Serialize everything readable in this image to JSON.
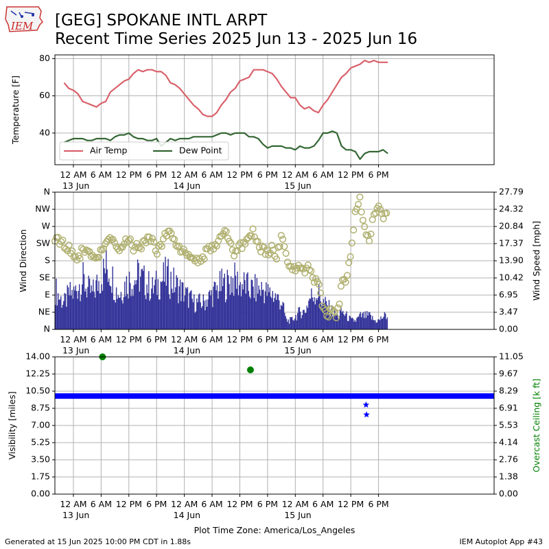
{
  "header": {
    "title_line1": "[GEG] SPOKANE INTL ARPT",
    "title_line2": "Recent Time Series 2025 Jun 13 - 2025 Jun 16",
    "logo_text": "IEM"
  },
  "footer": {
    "generated": "Generated at 15 Jun 2025 10:00 PM CDT in 1.88s",
    "app": "IEM Autoplot App #43"
  },
  "colors": {
    "air_temp": "#d9606a",
    "dew_point": "#336633",
    "wind_speed": "#333399",
    "wind_dir": "#b0b070",
    "visibility": "#0000ff",
    "ceiling": "#008000",
    "grid": "#b0b0b0"
  },
  "chart_data": [
    {
      "type": "line",
      "x_unit": "hours since 2025-06-13 00:00 (America/Los_Angeles)",
      "xlim": [
        -4,
        91
      ],
      "ylim": [
        23,
        82
      ],
      "ylabel": "Temperature [F]",
      "y_ticks": [
        40,
        60,
        80
      ],
      "x_tick_labels": [
        {
          "x": 0,
          "label": "12 AM",
          "date": "13 Jun"
        },
        {
          "x": 6,
          "label": "6 AM"
        },
        {
          "x": 12,
          "label": "12 PM"
        },
        {
          "x": 18,
          "label": "6 PM"
        },
        {
          "x": 24,
          "label": "12 AM",
          "date": "14 Jun"
        },
        {
          "x": 30,
          "label": "6 AM"
        },
        {
          "x": 36,
          "label": "12 PM"
        },
        {
          "x": 42,
          "label": "6 PM"
        },
        {
          "x": 48,
          "label": "12 AM",
          "date": "15 Jun"
        },
        {
          "x": 54,
          "label": "6 AM"
        },
        {
          "x": 60,
          "label": "12 PM"
        },
        {
          "x": 66,
          "label": "6 PM"
        }
      ],
      "grid": true,
      "legend": "lower-left",
      "series": [
        {
          "name": "Air Temp",
          "x": [
            -2,
            -1,
            0,
            1,
            2,
            3,
            4,
            5,
            6,
            7,
            8,
            9,
            10,
            11,
            12,
            13,
            14,
            15,
            16,
            17,
            18,
            19,
            20,
            21,
            22,
            23,
            24,
            25,
            26,
            27,
            28,
            29,
            30,
            31,
            32,
            33,
            34,
            35,
            36,
            37,
            38,
            39,
            40,
            41,
            42,
            43,
            44,
            45,
            46,
            47,
            48,
            49,
            50,
            51,
            52,
            53,
            54,
            55,
            56,
            57,
            58,
            59,
            60,
            61,
            62,
            63,
            64,
            65,
            66,
            67,
            68
          ],
          "values": [
            67,
            64,
            63,
            61,
            57,
            56,
            55,
            54,
            56,
            57,
            62,
            64,
            66,
            68,
            69,
            72,
            74,
            73,
            74,
            74,
            73,
            73,
            71,
            67,
            66,
            64,
            61,
            58,
            55,
            53,
            50,
            49,
            49,
            51,
            55,
            58,
            62,
            64,
            68,
            69,
            70,
            74,
            74,
            74,
            73,
            72,
            69,
            65,
            62,
            59,
            59,
            55,
            53,
            54,
            52,
            51,
            55,
            58,
            62,
            66,
            70,
            72,
            75,
            76,
            77,
            79,
            78,
            79,
            78,
            78,
            78
          ]
        },
        {
          "name": "Dew Point",
          "x": [
            -2,
            -1,
            0,
            1,
            2,
            3,
            4,
            5,
            6,
            7,
            8,
            9,
            10,
            11,
            12,
            13,
            14,
            15,
            16,
            17,
            18,
            19,
            20,
            21,
            22,
            23,
            24,
            25,
            26,
            27,
            28,
            29,
            30,
            31,
            32,
            33,
            34,
            35,
            36,
            37,
            38,
            39,
            40,
            41,
            42,
            43,
            44,
            45,
            46,
            47,
            48,
            49,
            50,
            51,
            52,
            53,
            54,
            55,
            56,
            57,
            58,
            59,
            60,
            61,
            62,
            63,
            64,
            65,
            66,
            67,
            68
          ],
          "values": [
            35,
            36,
            37,
            37,
            37,
            36,
            36,
            37,
            37,
            37,
            36,
            38,
            39,
            39,
            40,
            38,
            37,
            37,
            36,
            36,
            37,
            33,
            35,
            37,
            36,
            37,
            37,
            37,
            38,
            38,
            38,
            38,
            38,
            39,
            40,
            40,
            39,
            40,
            40,
            40,
            38,
            38,
            37,
            34,
            32,
            33,
            33,
            33,
            32,
            32,
            31,
            33,
            32,
            32,
            33,
            36,
            40,
            40,
            41,
            40,
            33,
            31,
            31,
            30,
            26,
            29,
            30,
            30,
            30,
            31,
            29
          ]
        }
      ]
    },
    {
      "type": "bar",
      "x_unit": "hours since 2025-06-13 00:00 (America/Los_Angeles)",
      "xlim": [
        -4,
        91
      ],
      "ylabel": "Wind Direction",
      "ylabel_right": "Wind Speed [mph]",
      "y_tick_labels": [
        "N",
        "NE",
        "E",
        "SE",
        "S",
        "SW",
        "W",
        "NW",
        "N"
      ],
      "ylim_right": [
        0,
        27.79
      ],
      "y_ticks_right": [
        "0.00",
        "3.47",
        "6.95",
        "10.42",
        "13.90",
        "17.37",
        "20.84",
        "24.32",
        "27.79"
      ],
      "grid": true,
      "series": [
        {
          "name": "Wind Speed",
          "unit": "mph",
          "x": [
            -4,
            -3,
            -2,
            -1,
            0,
            1,
            2,
            3,
            4,
            5,
            6,
            7,
            8,
            9,
            10,
            11,
            12,
            13,
            14,
            15,
            16,
            17,
            18,
            19,
            20,
            21,
            22,
            23,
            24,
            25,
            26,
            27,
            28,
            29,
            30,
            31,
            32,
            33,
            34,
            35,
            36,
            37,
            38,
            39,
            40,
            41,
            42,
            43,
            44,
            45,
            46,
            47,
            48,
            49,
            50,
            51,
            52,
            53,
            54,
            55,
            56,
            57,
            58,
            59,
            60,
            61,
            62,
            63,
            64,
            65,
            66,
            67,
            68
          ],
          "values": [
            9,
            7,
            6,
            8,
            8,
            10,
            11,
            9,
            8,
            10,
            12,
            14,
            13,
            9,
            8,
            10,
            11,
            11,
            12,
            11,
            10,
            9,
            10,
            11,
            12,
            11,
            10,
            9,
            8,
            7,
            6,
            6,
            6,
            7,
            8,
            9,
            10,
            10,
            11,
            11,
            10,
            10,
            9,
            9,
            9,
            9,
            8,
            8,
            7,
            6,
            2,
            2,
            3,
            4,
            4,
            7,
            8,
            8,
            6,
            5,
            4,
            3,
            4,
            3,
            2,
            2,
            3,
            3,
            3,
            2,
            2,
            3,
            3
          ]
        },
        {
          "name": "Wind Direction",
          "unit": "compass point index (0=N, 8=N)",
          "x": [
            -4,
            -3,
            -2,
            -1,
            0,
            1,
            2,
            3,
            4,
            5,
            6,
            7,
            8,
            9,
            10,
            11,
            12,
            13,
            14,
            15,
            16,
            17,
            18,
            19,
            20,
            21,
            22,
            23,
            24,
            25,
            26,
            27,
            28,
            29,
            30,
            31,
            32,
            33,
            34,
            35,
            36,
            37,
            38,
            39,
            40,
            41,
            42,
            43,
            44,
            45,
            46,
            47,
            48,
            49,
            50,
            51,
            52,
            53,
            54,
            55,
            56,
            57,
            58,
            59,
            60,
            61,
            62,
            63,
            64,
            65,
            66,
            67,
            68
          ],
          "values": [
            5.4,
            5.2,
            4.9,
            4.7,
            4.4,
            4.2,
            4.6,
            4.4,
            4.2,
            4.1,
            4.6,
            4.9,
            5.2,
            4.9,
            4.7,
            5.0,
            5.3,
            4.7,
            4.8,
            5.0,
            5.4,
            5.2,
            4.6,
            4.8,
            5.5,
            5.8,
            5.1,
            4.6,
            4.6,
            4.3,
            4.1,
            3.9,
            4.2,
            4.6,
            4.8,
            4.7,
            5.4,
            5.6,
            4.9,
            4.3,
            4.8,
            5.1,
            5.4,
            5.7,
            4.8,
            4.6,
            4.4,
            4.7,
            4.2,
            5.6,
            4.2,
            3.7,
            3.6,
            3.8,
            3.4,
            3.6,
            3.0,
            2.7,
            1.1,
            0.8,
            1.4,
            0.7,
            2.6,
            3.0,
            4.2,
            7.0,
            7.6,
            5.8,
            5.4,
            6.6,
            7.4,
            6.6,
            7.0
          ]
        }
      ]
    },
    {
      "type": "scatter",
      "x_unit": "hours since 2025-06-13 00:00 (America/Los_Angeles)",
      "xlim": [
        -4,
        91
      ],
      "ylim": [
        0,
        14
      ],
      "ylabel": "Visibility [miles]",
      "y_ticks": [
        "0.00",
        "1.75",
        "3.50",
        "5.25",
        "7.00",
        "8.75",
        "10.50",
        "12.25",
        "14.00"
      ],
      "ylabel_right": "Overcast Ceiling [k ft]",
      "ylim_right": [
        0,
        11.05
      ],
      "y_ticks_right": [
        "0.00",
        "1.38",
        "2.76",
        "4.14",
        "5.53",
        "6.91",
        "8.29",
        "9.67",
        "11.05"
      ],
      "grid": true,
      "xlabel": "Plot Time Zone: America/Los_Angeles",
      "visibility": {
        "x_start": -4,
        "x_end": 91,
        "value": 10,
        "dips": [
          {
            "x": 63.3,
            "value": 9.1
          },
          {
            "x": 63.4,
            "value": 8.1
          }
        ]
      },
      "ceiling": {
        "x": [
          6.3,
          38.3
        ],
        "values": [
          11.05,
          10.0
        ]
      }
    }
  ]
}
